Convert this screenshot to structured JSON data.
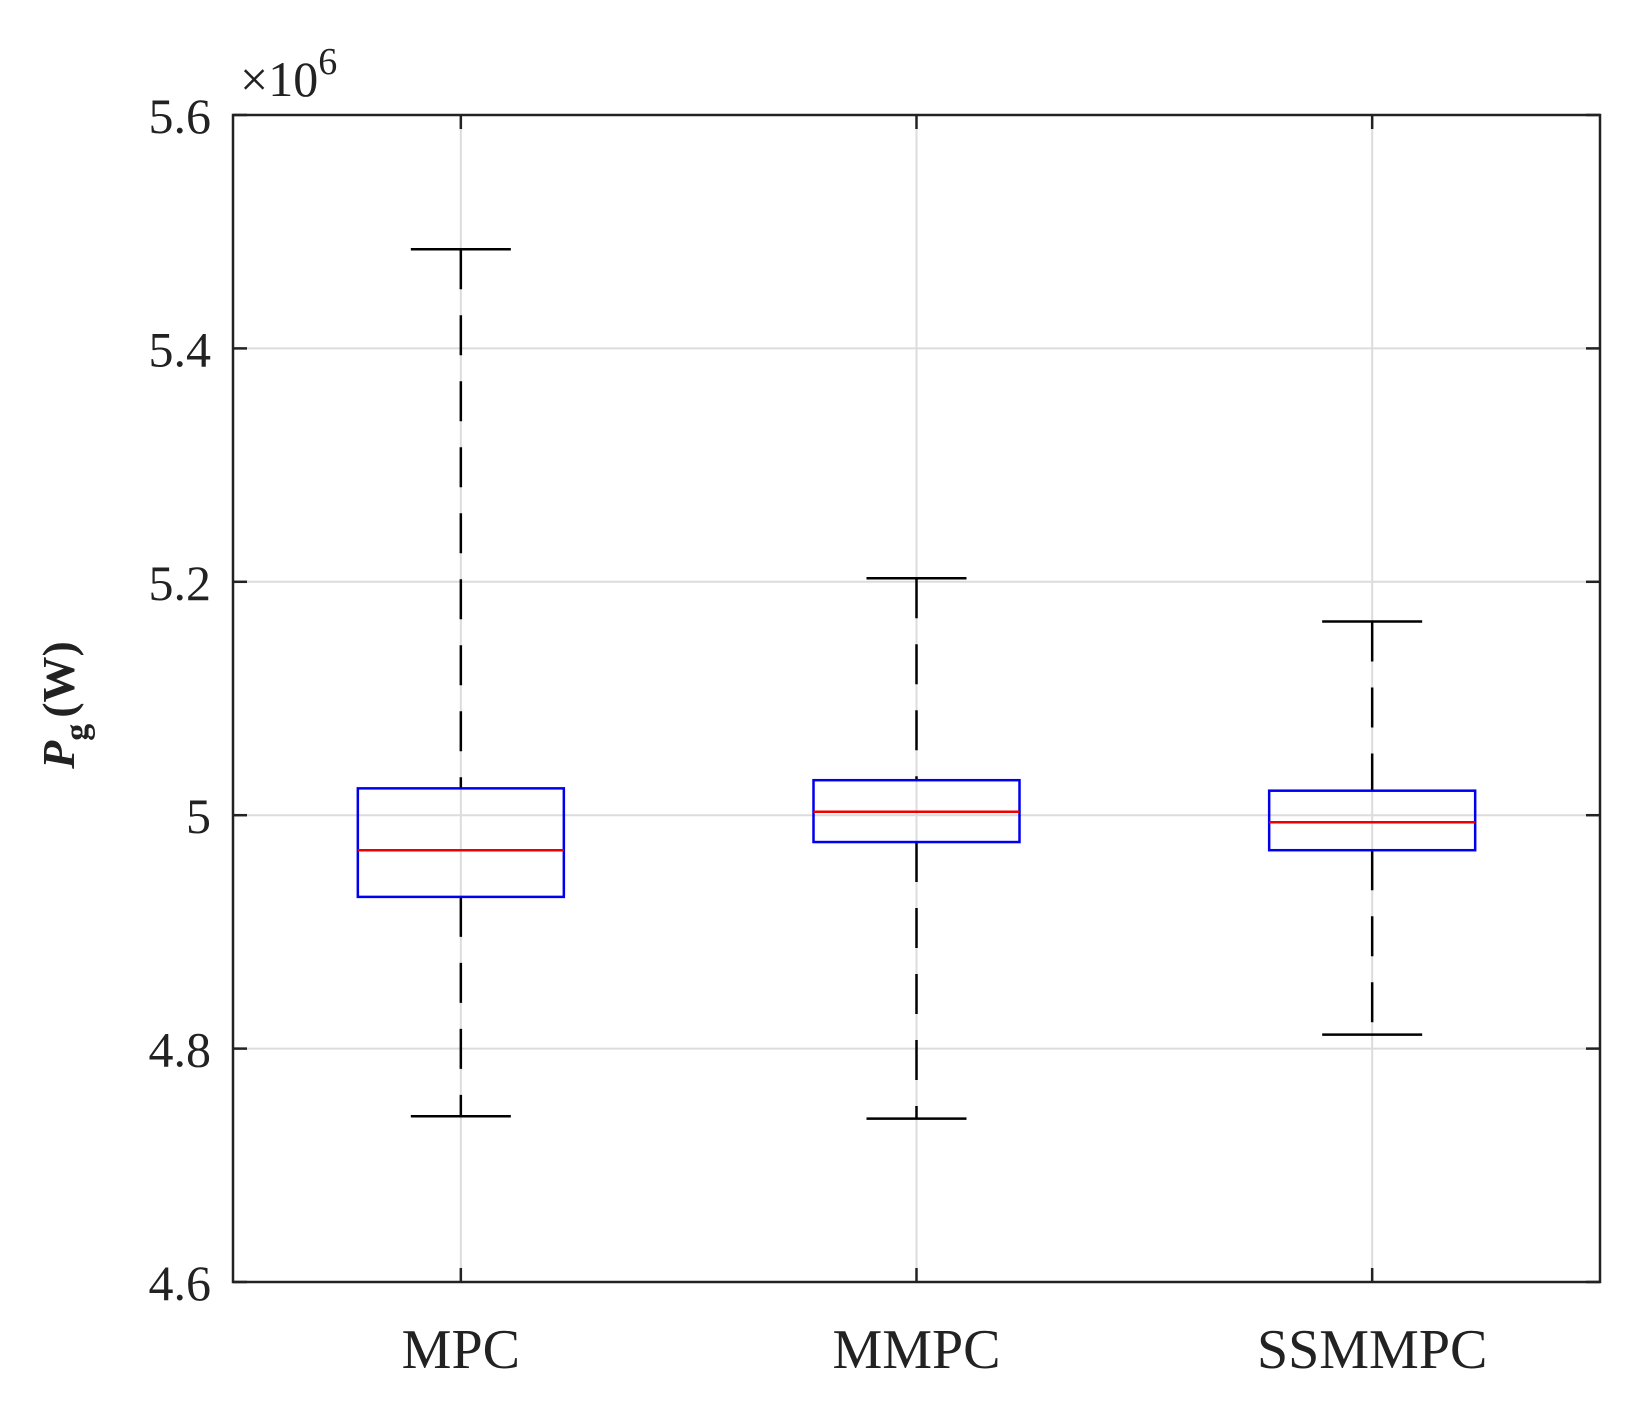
{
  "chart_data": {
    "type": "boxplot",
    "title": "",
    "xlabel": "",
    "ylabel": {
      "symbol": "P",
      "subscript": "g",
      "unit": "(W)"
    },
    "y_multiplier": {
      "prefix": "×10",
      "exponent": "6"
    },
    "ylim": [
      4.6,
      5.6
    ],
    "yticks": [
      4.6,
      4.8,
      5.0,
      5.2,
      5.4,
      5.6
    ],
    "ytick_labels": [
      "4.6",
      "4.8",
      "5",
      "5.2",
      "5.4",
      "5.6"
    ],
    "grid": true,
    "categories": [
      "MPC",
      "MMPC",
      "SSMMPC"
    ],
    "boxes": [
      {
        "name": "MPC",
        "whisker_low": 4.742,
        "q1": 4.93,
        "median": 4.97,
        "q3": 5.023,
        "whisker_high": 5.485
      },
      {
        "name": "MMPC",
        "whisker_low": 4.74,
        "q1": 4.977,
        "median": 5.003,
        "q3": 5.03,
        "whisker_high": 5.203
      },
      {
        "name": "SSMMPC",
        "whisker_low": 4.812,
        "q1": 4.97,
        "median": 4.994,
        "q3": 5.021,
        "whisker_high": 5.166
      }
    ],
    "colors": {
      "box": "#0000ee",
      "median": "#ee0000",
      "whisker": "#000000",
      "grid": "#dcdcdc",
      "axis": "#222222"
    }
  }
}
